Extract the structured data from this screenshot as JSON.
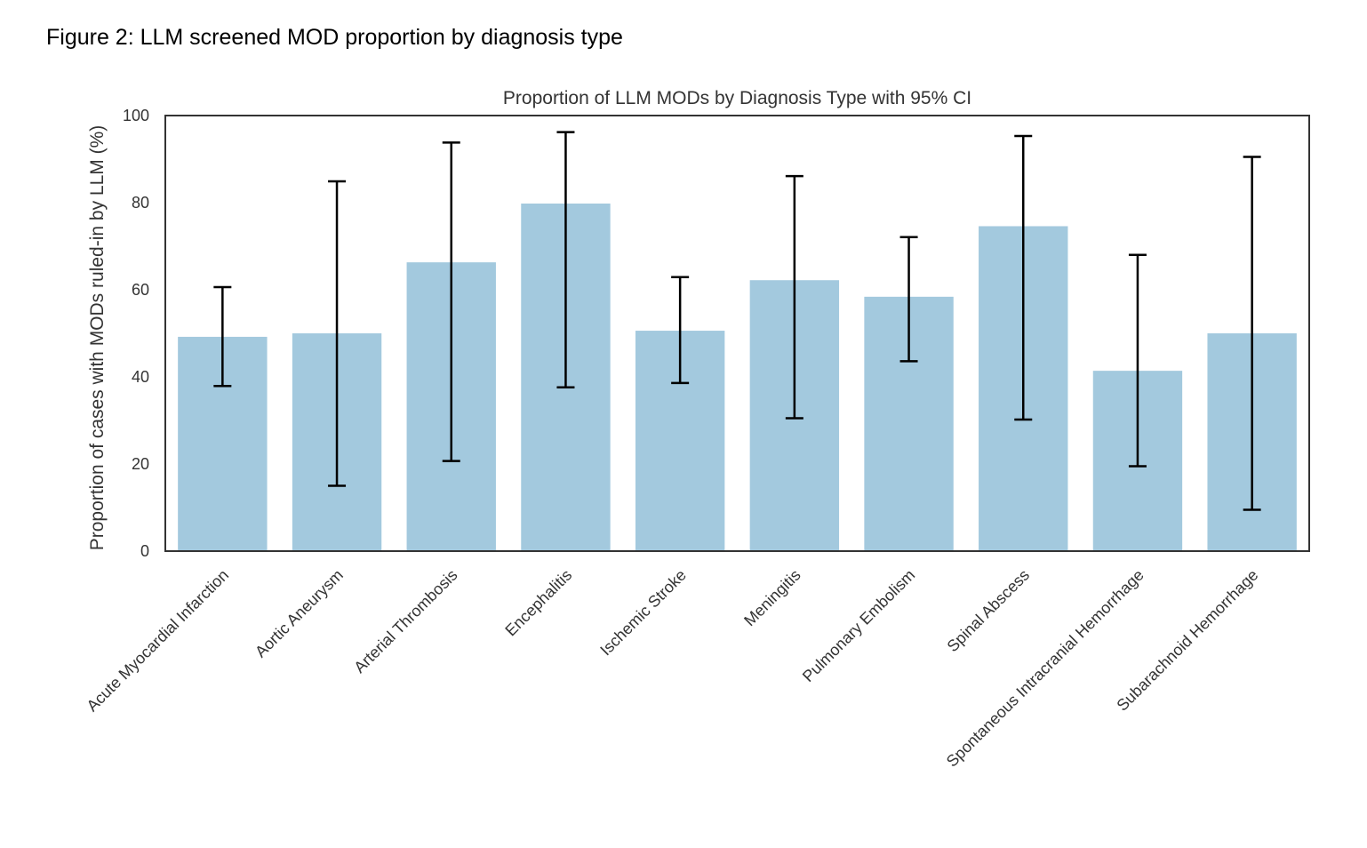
{
  "figure": {
    "caption": "Figure 2: LLM screened MOD proportion by diagnosis type"
  },
  "chart_data": {
    "type": "bar",
    "title": "Proportion of LLM MODs by Diagnosis Type with 95% CI",
    "xlabel": "",
    "ylabel": "Proportion of cases with MODs ruled-in by LLM (%)",
    "ylim": [
      0,
      100
    ],
    "yticks": [
      0,
      20,
      40,
      60,
      80,
      100
    ],
    "grid": false,
    "bar_color": "#a3c9de",
    "errorbar_color": "#000000",
    "categories": [
      "Acute Myocardial Infarction",
      "Aortic Aneurysm",
      "Arterial Thrombosis",
      "Encephalitis",
      "Ischemic Stroke",
      "Meningitis",
      "Pulmonary Embolism",
      "Spinal Abscess",
      "Spontaneous Intracranial Hemorrhage",
      "Subarachnoid Hemorrhage"
    ],
    "values": [
      49.2,
      50.0,
      66.3,
      79.8,
      50.6,
      62.2,
      58.4,
      74.6,
      41.4,
      50.0
    ],
    "ci_lower": [
      37.9,
      15.0,
      20.7,
      37.6,
      38.6,
      30.5,
      43.6,
      30.2,
      19.5,
      9.5
    ],
    "ci_upper": [
      60.6,
      84.9,
      93.8,
      96.2,
      62.9,
      86.1,
      72.1,
      95.3,
      68.0,
      90.5
    ]
  }
}
